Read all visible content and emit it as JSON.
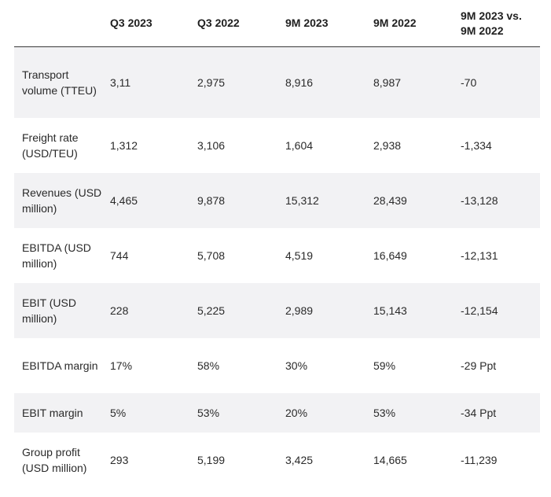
{
  "table": {
    "headers": [
      "",
      "Q3 2023",
      "Q3 2022",
      "9M 2023",
      "9M 2022",
      "9M 2023 vs. 9M 2022"
    ],
    "rows": [
      {
        "label": "Transport volume (TTEU)",
        "values": [
          "3,11",
          "2,975",
          "8,916",
          "8,987",
          "-70"
        ]
      },
      {
        "label": "Freight rate (USD/TEU)",
        "values": [
          "1,312",
          "3,106",
          "1,604",
          "2,938",
          "-1,334"
        ]
      },
      {
        "label": "Revenues (USD million)",
        "values": [
          "4,465",
          "9,878",
          "15,312",
          "28,439",
          "-13,128"
        ]
      },
      {
        "label": "EBITDA (USD million)",
        "values": [
          "744",
          "5,708",
          "4,519",
          "16,649",
          "-12,131"
        ]
      },
      {
        "label": "EBIT (USD million)",
        "values": [
          "228",
          "5,225",
          "2,989",
          "15,143",
          "-12,154"
        ]
      },
      {
        "label": "EBITDA margin",
        "values": [
          "17%",
          "58%",
          "30%",
          "59%",
          "-29 Ppt"
        ]
      },
      {
        "label": "EBIT margin",
        "values": [
          "5%",
          "53%",
          "20%",
          "53%",
          "-34 Ppt"
        ]
      },
      {
        "label": "Group profit (USD million)",
        "values": [
          "293",
          "5,199",
          "3,425",
          "14,665",
          "-11,239"
        ]
      }
    ]
  }
}
